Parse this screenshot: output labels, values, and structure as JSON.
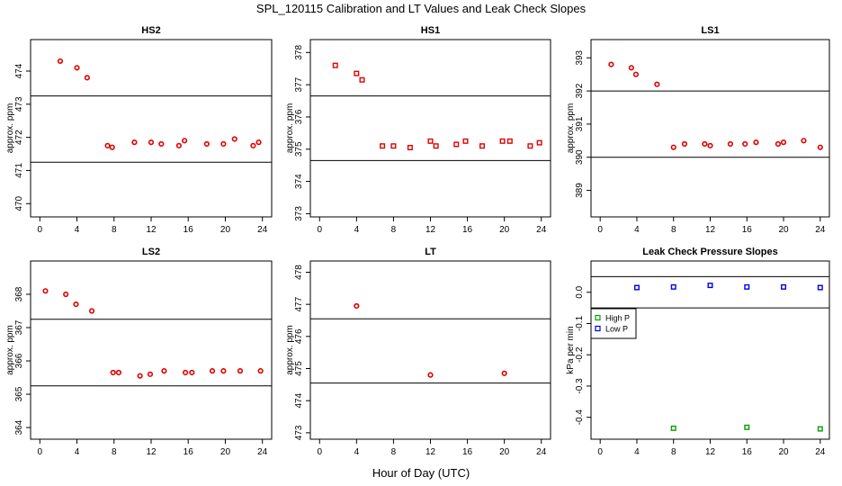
{
  "title": "SPL_120115  Calibration and LT Values and Leak Check Slopes",
  "xlabel": "Hour of Day (UTC)",
  "colors": {
    "points": "#e00000",
    "high_p": "#00a000",
    "low_p": "#0000e0"
  },
  "chart_data": [
    {
      "type": "scatter",
      "title": "HS2",
      "ylabel": "approx. ppm",
      "xlim": [
        -1,
        25
      ],
      "ylim": [
        469.6,
        474.95
      ],
      "xticks": [
        0,
        4,
        8,
        12,
        16,
        20,
        24
      ],
      "yticks": [
        470,
        471,
        472,
        473,
        474
      ],
      "hlines": [
        473.25,
        471.25
      ],
      "series": [
        {
          "marker": "circle",
          "color": "#e00000",
          "x": [
            2.2,
            4.0,
            5.1,
            7.3,
            7.8,
            10.2,
            12.0,
            13.1,
            15.0,
            15.6,
            18.0,
            19.8,
            21.0,
            23.0,
            23.6
          ],
          "y": [
            474.3,
            474.1,
            473.8,
            471.75,
            471.7,
            471.85,
            471.85,
            471.8,
            471.75,
            471.9,
            471.8,
            471.8,
            471.95,
            471.75,
            471.85
          ]
        }
      ]
    },
    {
      "type": "scatter",
      "title": "HS1",
      "ylabel": "approx. ppm",
      "xlim": [
        -1,
        25
      ],
      "ylim": [
        372.9,
        378.4
      ],
      "xticks": [
        0,
        4,
        8,
        12,
        16,
        20,
        24
      ],
      "yticks": [
        373,
        374,
        375,
        376,
        377,
        378
      ],
      "hlines": [
        376.65,
        374.65
      ],
      "series": [
        {
          "marker": "square",
          "color": "#e00000",
          "x": [
            1.7,
            4.0,
            4.6,
            6.8,
            8.0,
            9.8,
            12.0,
            12.6,
            14.8,
            15.8,
            17.6,
            19.8,
            20.6,
            22.8,
            23.8
          ],
          "y": [
            377.6,
            377.35,
            377.15,
            375.1,
            375.1,
            375.05,
            375.25,
            375.1,
            375.15,
            375.25,
            375.1,
            375.25,
            375.25,
            375.1,
            375.2
          ]
        }
      ]
    },
    {
      "type": "scatter",
      "title": "LS1",
      "ylabel": "approx. ppm",
      "xlim": [
        -1,
        25
      ],
      "ylim": [
        388.2,
        393.55
      ],
      "xticks": [
        0,
        4,
        8,
        12,
        16,
        20,
        24
      ],
      "yticks": [
        389,
        390,
        391,
        392,
        393
      ],
      "hlines": [
        392.0,
        390.0
      ],
      "series": [
        {
          "marker": "circle",
          "color": "#e00000",
          "x": [
            1.2,
            3.4,
            3.9,
            6.2,
            8.0,
            9.2,
            11.4,
            12.0,
            14.2,
            15.8,
            17.0,
            19.4,
            20.0,
            22.2,
            24.0
          ],
          "y": [
            392.8,
            392.7,
            392.5,
            392.2,
            390.3,
            390.4,
            390.4,
            390.35,
            390.4,
            390.4,
            390.45,
            390.4,
            390.45,
            390.5,
            390.3
          ]
        }
      ]
    },
    {
      "type": "scatter",
      "title": "LS2",
      "ylabel": "approx. ppm",
      "xlim": [
        -1,
        25
      ],
      "ylim": [
        363.65,
        369.0
      ],
      "xticks": [
        0,
        4,
        8,
        12,
        16,
        20,
        24
      ],
      "yticks": [
        364,
        365,
        366,
        367,
        368
      ],
      "hlines": [
        367.25,
        365.25
      ],
      "series": [
        {
          "marker": "circle",
          "color": "#e00000",
          "x": [
            0.6,
            2.8,
            3.9,
            5.6,
            7.9,
            8.5,
            10.8,
            11.9,
            13.4,
            15.7,
            16.4,
            18.6,
            19.8,
            21.6,
            23.8
          ],
          "y": [
            368.1,
            368.0,
            367.7,
            367.5,
            365.65,
            365.65,
            365.55,
            365.6,
            365.7,
            365.65,
            365.65,
            365.7,
            365.7,
            365.7,
            365.7
          ]
        }
      ]
    },
    {
      "type": "scatter",
      "title": "LT",
      "ylabel": "approx. ppm",
      "xlim": [
        -1,
        25
      ],
      "ylim": [
        472.8,
        478.35
      ],
      "xticks": [
        0,
        4,
        8,
        12,
        16,
        20,
        24
      ],
      "yticks": [
        473,
        474,
        475,
        476,
        477,
        478
      ],
      "hlines": [
        476.55,
        474.55
      ],
      "series": [
        {
          "marker": "circle",
          "color": "#e00000",
          "x": [
            4.0,
            12.0,
            20.0
          ],
          "y": [
            476.95,
            474.8,
            474.85
          ]
        }
      ]
    },
    {
      "type": "scatter",
      "title": "Leak Check Pressure Slopes",
      "ylabel": "kPa per min",
      "xlim": [
        -1,
        25
      ],
      "ylim": [
        -0.47,
        0.1
      ],
      "xticks": [
        0,
        4,
        8,
        12,
        16,
        20,
        24
      ],
      "yticks": [
        -0.4,
        -0.3,
        -0.2,
        -0.1,
        0.0
      ],
      "ytick_labels": [
        "-0.4",
        "-0.3",
        "-0.2",
        "-0.1",
        "0.0"
      ],
      "hlines": [
        0.05,
        -0.05
      ],
      "legend": {
        "position": "top-left",
        "entries": [
          "High P",
          "Low P"
        ]
      },
      "series": [
        {
          "name": "High P",
          "marker": "square",
          "color": "#00a000",
          "x": [
            8,
            16,
            24
          ],
          "y": [
            -0.435,
            -0.432,
            -0.437
          ]
        },
        {
          "name": "Low P",
          "marker": "square",
          "color": "#0000e0",
          "x": [
            4,
            8,
            12,
            16,
            20,
            24
          ],
          "y": [
            0.015,
            0.017,
            0.022,
            0.017,
            0.017,
            0.015
          ]
        }
      ]
    }
  ]
}
